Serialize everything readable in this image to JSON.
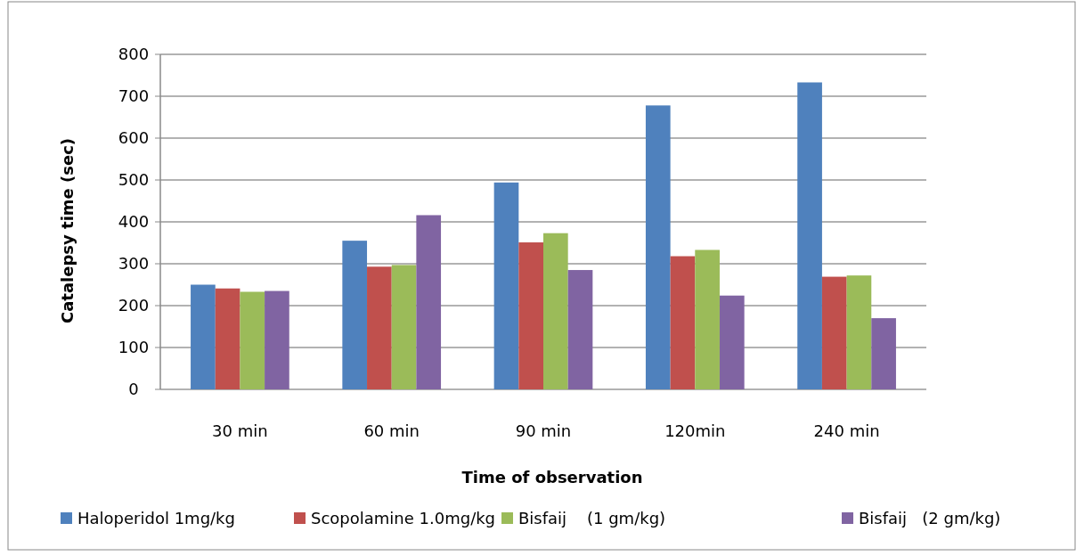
{
  "chart_data": {
    "type": "bar",
    "xlabel": "Time of observation",
    "ylabel": "Catalepsy time (sec)",
    "categories": [
      "30 min",
      "60 min",
      "90 min",
      "120min",
      "240 min"
    ],
    "series": [
      {
        "name": "Haloperidol 1mg/kg",
        "color": "#4f81bd",
        "values": [
          250,
          355,
          494,
          678,
          733
        ]
      },
      {
        "name": "Scopolamine 1.0mg/kg",
        "color": "#c0504d",
        "values": [
          241,
          293,
          351,
          318,
          269
        ]
      },
      {
        "name": "Bisfaij    (1 gm/kg)",
        "color": "#9bbb59",
        "values": [
          233,
          297,
          373,
          333,
          272
        ]
      },
      {
        "name": "Bisfaij   (2 gm/kg)",
        "color": "#8064a2",
        "values": [
          235,
          416,
          285,
          224,
          170
        ]
      }
    ],
    "ylim": [
      0,
      800
    ],
    "yticks": [
      0,
      100,
      200,
      300,
      400,
      500,
      600,
      700,
      800
    ],
    "grid": "y",
    "legend": "bottom"
  }
}
